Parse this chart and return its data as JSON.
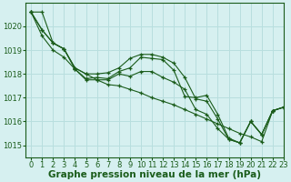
{
  "background_color": "#d6f0f0",
  "grid_color": "#b8dede",
  "line_color": "#1a5c1a",
  "xlabel": "Graphe pression niveau de la mer (hPa)",
  "xlabel_fontsize": 7.5,
  "tick_fontsize": 6,
  "xlim": [
    -0.5,
    23
  ],
  "ylim": [
    1014.5,
    1021.0
  ],
  "yticks": [
    1015,
    1016,
    1017,
    1018,
    1019,
    1020
  ],
  "xticks": [
    0,
    1,
    2,
    3,
    4,
    5,
    6,
    7,
    8,
    9,
    10,
    11,
    12,
    13,
    14,
    15,
    16,
    17,
    18,
    19,
    20,
    21,
    22,
    23
  ],
  "series": [
    [
      1020.6,
      1019.85,
      1019.3,
      1019.05,
      1018.2,
      1017.8,
      1017.85,
      1017.8,
      1018.1,
      1018.25,
      1018.7,
      1018.65,
      1018.6,
      1018.15,
      1017.05,
      1017.0,
      1017.1,
      1016.3,
      1015.3,
      1015.1,
      1016.0,
      1015.45,
      1016.45,
      1016.6
    ],
    [
      1020.6,
      1019.85,
      1019.3,
      1019.05,
      1018.25,
      1018.0,
      1018.0,
      1018.05,
      1018.25,
      1018.65,
      1018.82,
      1018.82,
      1018.7,
      1018.45,
      1017.85,
      1016.95,
      1016.85,
      1016.1,
      1015.25,
      1015.1,
      1016.0,
      1015.45,
      1016.45,
      1016.6
    ],
    [
      1020.6,
      1019.6,
      1019.0,
      1018.7,
      1018.2,
      1017.75,
      1017.75,
      1017.75,
      1018.0,
      1017.9,
      1018.1,
      1018.1,
      1017.85,
      1017.65,
      1017.35,
      1016.5,
      1016.3,
      1015.7,
      1015.25,
      1015.1,
      1016.0,
      1015.45,
      1016.45,
      1016.6
    ],
    [
      1020.6,
      1020.6,
      1019.3,
      1019.05,
      1018.25,
      1018.0,
      1017.75,
      1017.55,
      1017.5,
      1017.35,
      1017.2,
      1017.0,
      1016.85,
      1016.7,
      1016.5,
      1016.3,
      1016.1,
      1015.9,
      1015.7,
      1015.5,
      1015.35,
      1015.15,
      1016.45,
      1016.6
    ]
  ]
}
